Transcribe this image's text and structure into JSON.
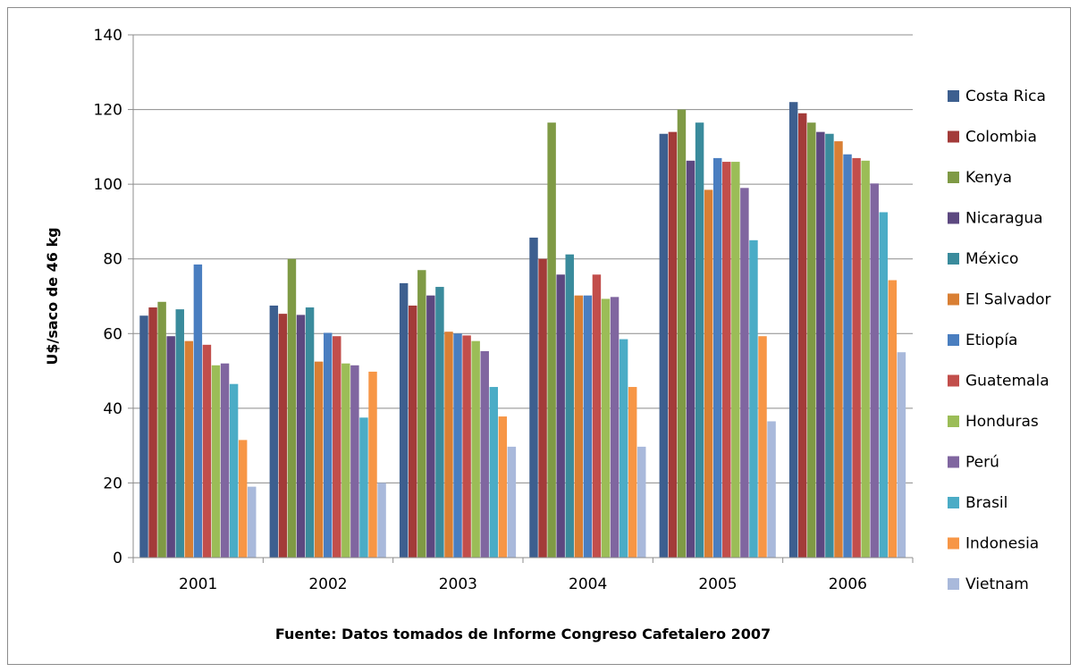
{
  "chart_data": {
    "type": "bar",
    "categories": [
      "2001",
      "2002",
      "2003",
      "2004",
      "2005",
      "2006"
    ],
    "series": [
      {
        "name": "Costa Rica",
        "color": "#3d5f8f",
        "values": [
          64.8,
          67.5,
          73.5,
          85.7,
          113.5,
          122
        ]
      },
      {
        "name": "Colombia",
        "color": "#a33b39",
        "values": [
          67,
          65.3,
          67.5,
          80,
          114,
          119
        ]
      },
      {
        "name": "Kenya",
        "color": "#7f9a45",
        "values": [
          68.5,
          80,
          77,
          116.5,
          120,
          116.5
        ]
      },
      {
        "name": "Nicaragua",
        "color": "#5c4880",
        "values": [
          59.3,
          65,
          70.2,
          75.8,
          106.3,
          114
        ]
      },
      {
        "name": "México",
        "color": "#3a8b9c",
        "values": [
          66.5,
          67,
          72.5,
          81.2,
          116.5,
          113.5
        ]
      },
      {
        "name": "El Salvador",
        "color": "#d97f34",
        "values": [
          58,
          52.5,
          60.5,
          70.2,
          98.5,
          111.5
        ]
      },
      {
        "name": "Etiopía",
        "color": "#4a7ec0",
        "values": [
          78.5,
          60.2,
          60,
          70.2,
          107,
          108
        ]
      },
      {
        "name": "Guatemala",
        "color": "#c24e4b",
        "values": [
          57,
          59.3,
          59.5,
          75.8,
          106,
          107
        ]
      },
      {
        "name": "Honduras",
        "color": "#9bbd57",
        "values": [
          51.5,
          52,
          58,
          69.3,
          106,
          106.3
        ]
      },
      {
        "name": "Perú",
        "color": "#8066a0",
        "values": [
          52,
          51.5,
          55.3,
          69.8,
          99,
          100.2
        ]
      },
      {
        "name": "Brasil",
        "color": "#4bacc6",
        "values": [
          46.5,
          37.5,
          45.7,
          58.5,
          85,
          92.5
        ]
      },
      {
        "name": "Indonesia",
        "color": "#f79646",
        "values": [
          31.5,
          49.8,
          37.8,
          45.7,
          59.3,
          74.3
        ]
      },
      {
        "name": "Vietnam",
        "color": "#a9b9db",
        "values": [
          19,
          20,
          29.7,
          29.7,
          36.5,
          55
        ]
      }
    ],
    "title": "",
    "xlabel": "Fuente: Datos tomados de Informe Congreso Cafetalero 2007",
    "ylabel": "U$/saco de 46 kg",
    "ylim": [
      0,
      140
    ],
    "yticks": [
      "0",
      "20",
      "40",
      "60",
      "80",
      "100",
      "120",
      "140"
    ],
    "grid": true,
    "legend_position": "right"
  }
}
